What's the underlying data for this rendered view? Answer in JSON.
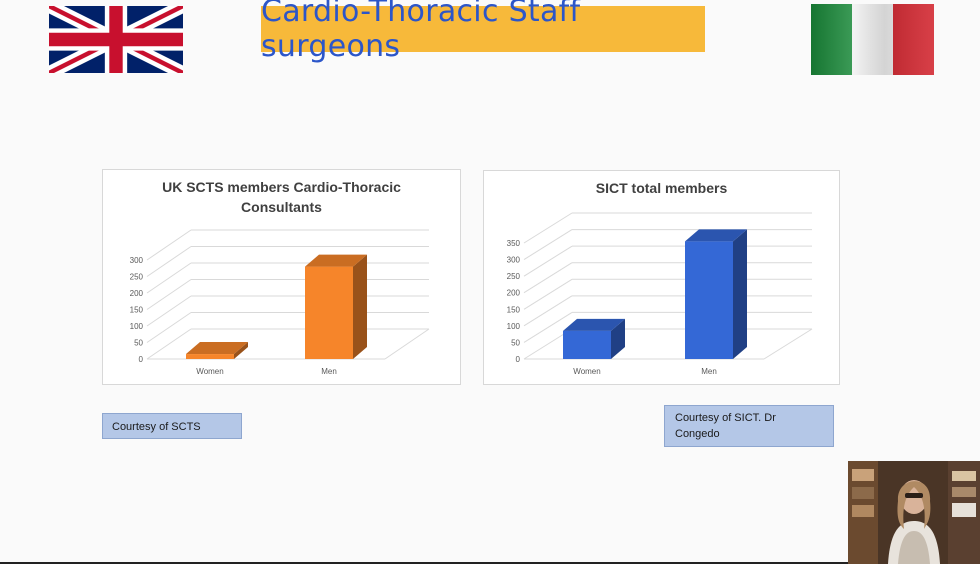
{
  "slide": {
    "title": "Cardio-Thoracic Staff surgeons"
  },
  "flags": {
    "left": "uk-flag-icon",
    "right": "italy-flag-icon"
  },
  "captions": {
    "uk": "Courtesy of SCTS",
    "italy": "Courtesy of SICT. Dr Congedo"
  },
  "colors": {
    "title_bg": "#f7b93a",
    "title_text": "#2c56c9",
    "uk_bar": "#f6852a",
    "italy_bar": "#3468d6",
    "caption_bg": "#b4c7e7"
  },
  "chart_data": [
    {
      "type": "bar",
      "title": "UK SCTS members Cardio-Thoracic Consultants",
      "categories": [
        "Women",
        "Men"
      ],
      "values": [
        15,
        280
      ],
      "ylim": [
        0,
        300
      ],
      "yticks": [
        "0",
        "50",
        "100",
        "150",
        "200",
        "250",
        "300"
      ],
      "grid": true,
      "legend": "none"
    },
    {
      "type": "bar",
      "title": "SICT total members",
      "categories": [
        "Women",
        "Men"
      ],
      "values": [
        85,
        355
      ],
      "ylim": [
        0,
        350
      ],
      "yticks": [
        "0",
        "50",
        "100",
        "150",
        "200",
        "250",
        "300",
        "350"
      ],
      "grid": true,
      "legend": "none"
    }
  ]
}
